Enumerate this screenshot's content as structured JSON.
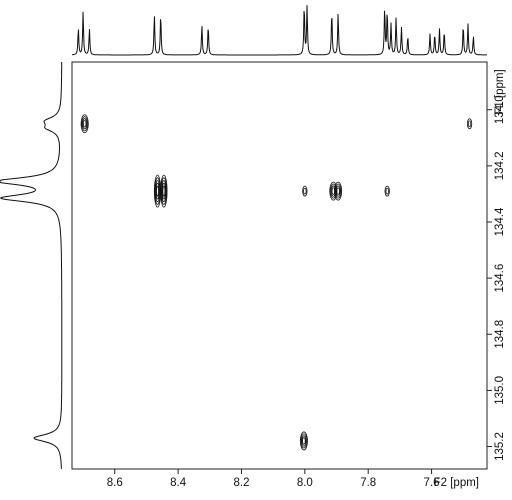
{
  "chart_data": {
    "type": "2D NMR contour plot (HMBC-style) with 1D projections",
    "xlabel": "F2 [ppm]",
    "ylabel": "F1 [ppm]",
    "x_axis": {
      "range_ppm": [
        8.735,
        7.425
      ],
      "direction": "decreasing to the right",
      "ticks": [
        8.6,
        8.4,
        8.2,
        8.0,
        7.8,
        7.6
      ],
      "tick_labels": [
        "8.6",
        "8.4",
        "8.2",
        "8.0",
        "7.8",
        "7.6"
      ]
    },
    "y_axis": {
      "range_ppm": [
        133.83,
        135.28
      ],
      "direction": "increasing downward",
      "ticks": [
        134.0,
        134.2,
        134.4,
        134.6,
        134.8,
        135.0,
        135.2
      ],
      "tick_labels": [
        "134.0",
        "134.2",
        "134.4",
        "134.6",
        "134.8",
        "135.0",
        "135.2"
      ]
    },
    "cross_peaks": [
      {
        "f2": 8.695,
        "f1": 134.05,
        "intensity": "medium"
      },
      {
        "f2": 7.48,
        "f1": 134.05,
        "intensity": "weak"
      },
      {
        "f2": 8.465,
        "f1": 134.29,
        "intensity": "strong"
      },
      {
        "f2": 8.445,
        "f1": 134.29,
        "intensity": "strong"
      },
      {
        "f2": 8.0,
        "f1": 134.29,
        "intensity": "weak"
      },
      {
        "f2": 7.91,
        "f1": 134.29,
        "intensity": "medium"
      },
      {
        "f2": 7.895,
        "f1": 134.29,
        "intensity": "medium"
      },
      {
        "f2": 7.74,
        "f1": 134.29,
        "intensity": "weak"
      },
      {
        "f2": 8.003,
        "f1": 135.18,
        "intensity": "medium"
      }
    ],
    "f2_projection_peaks": [
      {
        "ppm": 8.715,
        "height": 0.55
      },
      {
        "ppm": 8.7,
        "height": 0.88
      },
      {
        "ppm": 8.68,
        "height": 0.52
      },
      {
        "ppm": 8.475,
        "height": 0.82
      },
      {
        "ppm": 8.455,
        "height": 0.82
      },
      {
        "ppm": 8.325,
        "height": 0.6
      },
      {
        "ppm": 8.305,
        "height": 0.6
      },
      {
        "ppm": 8.002,
        "height": 1.0
      },
      {
        "ppm": 7.993,
        "height": 0.98
      },
      {
        "ppm": 7.915,
        "height": 0.88
      },
      {
        "ppm": 7.895,
        "height": 0.85
      },
      {
        "ppm": 7.748,
        "height": 0.95
      },
      {
        "ppm": 7.74,
        "height": 0.88
      },
      {
        "ppm": 7.728,
        "height": 0.62
      },
      {
        "ppm": 7.712,
        "height": 0.75
      },
      {
        "ppm": 7.695,
        "height": 0.55
      },
      {
        "ppm": 7.675,
        "height": 0.38
      },
      {
        "ppm": 7.605,
        "height": 0.42
      },
      {
        "ppm": 7.59,
        "height": 0.42
      },
      {
        "ppm": 7.575,
        "height": 0.52
      },
      {
        "ppm": 7.56,
        "height": 0.48
      },
      {
        "ppm": 7.5,
        "height": 0.6
      },
      {
        "ppm": 7.485,
        "height": 0.62
      },
      {
        "ppm": 7.468,
        "height": 0.38
      }
    ],
    "f1_projection_peaks": [
      {
        "ppm": 134.04,
        "height": 0.22
      },
      {
        "ppm": 134.065,
        "height": 0.2
      },
      {
        "ppm": 134.255,
        "height": 1.0
      },
      {
        "ppm": 134.315,
        "height": 0.92
      },
      {
        "ppm": 135.17,
        "height": 0.45
      }
    ],
    "grid": false,
    "legend": "none"
  }
}
